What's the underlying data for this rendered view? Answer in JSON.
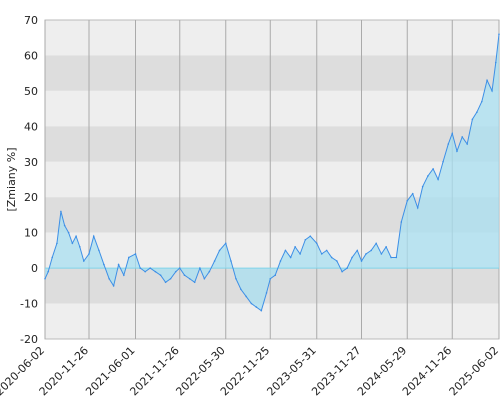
{
  "chart_data": {
    "type": "area",
    "title": "",
    "xlabel": "",
    "ylabel": "[Zmiany %]",
    "ylim": [
      -20,
      70
    ],
    "y_ticks": [
      70,
      60,
      50,
      40,
      30,
      20,
      10,
      0,
      -10,
      -20
    ],
    "x_ticks": [
      "2020-06-02",
      "2020-11-26",
      "2021-06-01",
      "2021-11-26",
      "2022-05-30",
      "2022-11-25",
      "2023-05-31",
      "2023-11-27",
      "2024-05-29",
      "2024-11-26",
      "2025-06-02"
    ],
    "x_range": [
      "2020-06-02",
      "2025-06-02"
    ],
    "grid": true,
    "legend": "none",
    "colors": {
      "line": "#3d8fe6",
      "fill": "#a8dff0",
      "band_light": "#eeeeee",
      "band_dark": "#dddddd",
      "zero_line": "#7fd4ea"
    },
    "series": [
      {
        "x": [
          "2020-06-02",
          "2020-06-15",
          "2020-07-01",
          "2020-07-20",
          "2020-08-05",
          "2020-08-20",
          "2020-09-05",
          "2020-09-20",
          "2020-10-05",
          "2020-10-20",
          "2020-11-05",
          "2020-11-26",
          "2020-12-15",
          "2021-01-05",
          "2021-01-25",
          "2021-02-15",
          "2021-03-05",
          "2021-03-25",
          "2021-04-15",
          "2021-05-05",
          "2021-06-01",
          "2021-06-20",
          "2021-07-10",
          "2021-07-30",
          "2021-08-20",
          "2021-09-10",
          "2021-09-30",
          "2021-10-20",
          "2021-11-10",
          "2021-11-26",
          "2021-12-15",
          "2022-01-05",
          "2022-01-25",
          "2022-02-15",
          "2022-03-05",
          "2022-03-25",
          "2022-04-15",
          "2022-05-05",
          "2022-05-30",
          "2022-06-20",
          "2022-07-10",
          "2022-07-30",
          "2022-08-20",
          "2022-09-10",
          "2022-09-30",
          "2022-10-20",
          "2022-11-10",
          "2022-11-25",
          "2022-12-15",
          "2023-01-05",
          "2023-01-25",
          "2023-02-15",
          "2023-03-05",
          "2023-03-25",
          "2023-04-15",
          "2023-05-05",
          "2023-05-31",
          "2023-06-20",
          "2023-07-10",
          "2023-07-30",
          "2023-08-20",
          "2023-09-10",
          "2023-09-30",
          "2023-10-20",
          "2023-11-10",
          "2023-11-27",
          "2023-12-15",
          "2024-01-05",
          "2024-01-25",
          "2024-02-15",
          "2024-03-05",
          "2024-03-25",
          "2024-04-15",
          "2024-05-05",
          "2024-05-29",
          "2024-06-20",
          "2024-07-10",
          "2024-07-30",
          "2024-08-20",
          "2024-09-10",
          "2024-09-30",
          "2024-10-20",
          "2024-11-10",
          "2024-11-26",
          "2024-12-15",
          "2025-01-05",
          "2025-01-25",
          "2025-02-15",
          "2025-03-05",
          "2025-03-25",
          "2025-04-15",
          "2025-05-05",
          "2025-05-20",
          "2025-06-02"
        ],
        "values": [
          -3,
          -1,
          3,
          7,
          16,
          12,
          10,
          7,
          9,
          6,
          2,
          4,
          9,
          5,
          1,
          -3,
          -5,
          1,
          -2,
          3,
          4,
          0,
          -1,
          0,
          -1,
          -2,
          -4,
          -3,
          -1,
          0,
          -2,
          -3,
          -4,
          0,
          -3,
          -1,
          2,
          5,
          7,
          2,
          -3,
          -6,
          -8,
          -10,
          -11,
          -12,
          -7,
          -3,
          -2,
          2,
          5,
          3,
          6,
          4,
          8,
          9,
          7,
          4,
          5,
          3,
          2,
          -1,
          0,
          3,
          5,
          2,
          4,
          5,
          7,
          4,
          6,
          3,
          3,
          13,
          19,
          21,
          17,
          23,
          26,
          28,
          25,
          30,
          35,
          38,
          33,
          37,
          35,
          42,
          44,
          47,
          53,
          50,
          58,
          66
        ]
      }
    ]
  }
}
